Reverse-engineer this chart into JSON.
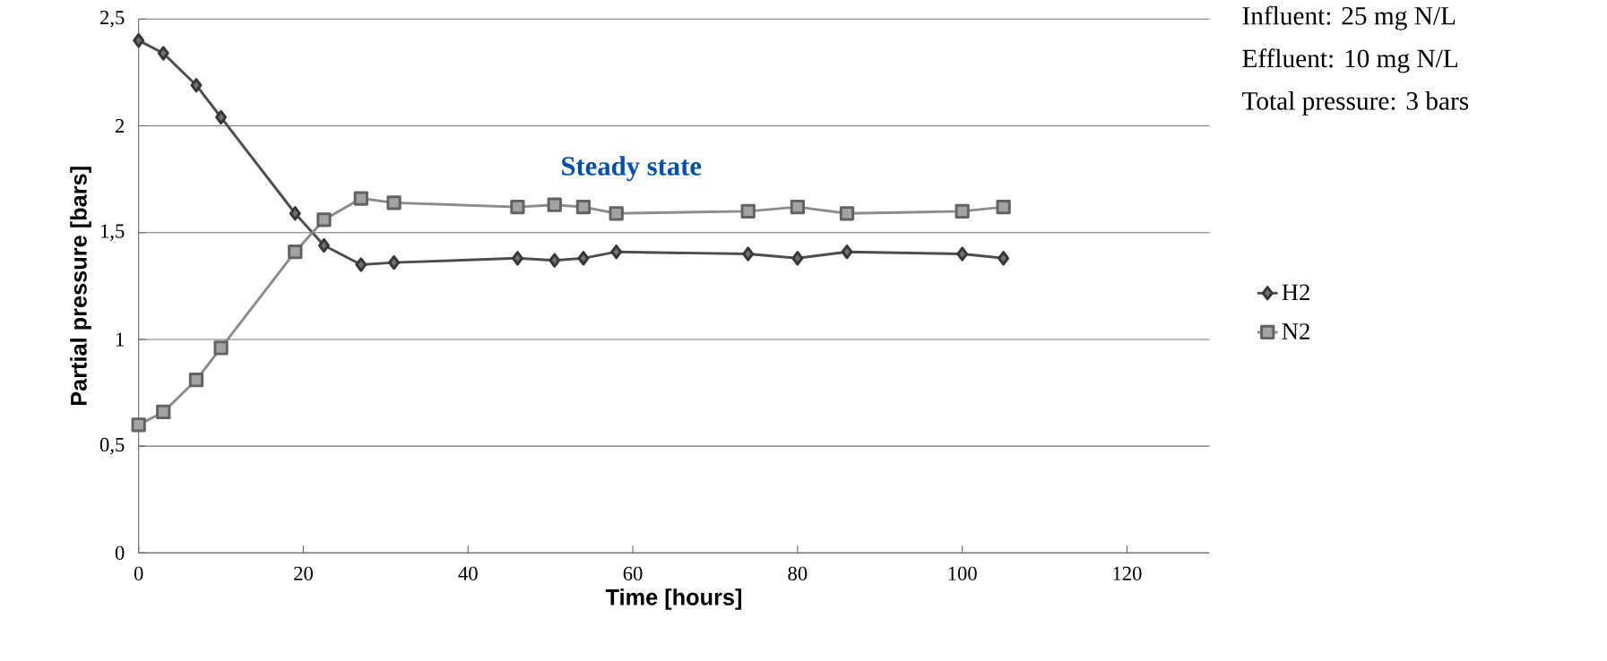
{
  "chart_data": {
    "type": "line",
    "xlabel": "Time [hours]",
    "ylabel": "Partial pressure [bars]",
    "x": [
      0,
      3,
      7,
      10,
      19,
      22.5,
      27,
      31,
      46,
      50.5,
      54,
      58,
      74,
      80,
      86,
      100,
      105
    ],
    "series": [
      {
        "name": "H2",
        "color": "#4d4d4d",
        "marker": "diamond",
        "values": [
          2.4,
          2.34,
          2.19,
          2.04,
          1.59,
          1.44,
          1.35,
          1.36,
          1.38,
          1.37,
          1.38,
          1.41,
          1.4,
          1.38,
          1.41,
          1.4,
          1.38
        ]
      },
      {
        "name": "N2",
        "color": "#8c8c8c",
        "marker": "square",
        "values": [
          0.6,
          0.66,
          0.81,
          0.96,
          1.41,
          1.56,
          1.66,
          1.64,
          1.62,
          1.63,
          1.62,
          1.59,
          1.6,
          1.62,
          1.59,
          1.6,
          1.62
        ]
      }
    ],
    "xlim": [
      0,
      130
    ],
    "xticks": [
      0,
      20,
      40,
      60,
      80,
      100,
      120
    ],
    "ylim": [
      0,
      2.5
    ],
    "yticks": [
      0,
      {
        "value": 0.5,
        "label": "0,5"
      },
      1,
      {
        "value": 1.5,
        "label": "1,5"
      },
      2,
      {
        "value": 2.5,
        "label": "2,5"
      }
    ],
    "grid": "y",
    "legend": "right",
    "line_style": "solid",
    "annotations": [
      "Steady state",
      "Influent: 25 mg N/L",
      "Effluent: 10 mg N/L",
      "Total pressure: 3 bars"
    ]
  }
}
